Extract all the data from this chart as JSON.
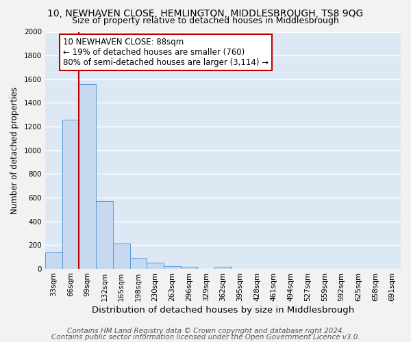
{
  "title": "10, NEWHAVEN CLOSE, HEMLINGTON, MIDDLESBROUGH, TS8 9QG",
  "subtitle": "Size of property relative to detached houses in Middlesbrough",
  "xlabel": "Distribution of detached houses by size in Middlesbrough",
  "ylabel": "Number of detached properties",
  "categories": [
    "33sqm",
    "66sqm",
    "99sqm",
    "132sqm",
    "165sqm",
    "198sqm",
    "230sqm",
    "263sqm",
    "296sqm",
    "329sqm",
    "362sqm",
    "395sqm",
    "428sqm",
    "461sqm",
    "494sqm",
    "527sqm",
    "559sqm",
    "592sqm",
    "625sqm",
    "658sqm",
    "691sqm"
  ],
  "values": [
    140,
    1260,
    1560,
    570,
    215,
    95,
    50,
    22,
    15,
    0,
    18,
    0,
    0,
    0,
    0,
    0,
    0,
    0,
    0,
    0,
    0
  ],
  "bar_color": "#c6d9f0",
  "bar_edge_color": "#5b9bd5",
  "vline_pos": 1.5,
  "vline_color": "#c00000",
  "annotation_text": "10 NEWHAVEN CLOSE: 88sqm\n← 19% of detached houses are smaller (760)\n80% of semi-detached houses are larger (3,114) →",
  "annotation_box_facecolor": "#ffffff",
  "annotation_box_edgecolor": "#c00000",
  "ylim": [
    0,
    2000
  ],
  "yticks": [
    0,
    200,
    400,
    600,
    800,
    1000,
    1200,
    1400,
    1600,
    1800,
    2000
  ],
  "footnote1": "Contains HM Land Registry data © Crown copyright and database right 2024.",
  "footnote2": "Contains public sector information licensed under the Open Government Licence v3.0.",
  "bg_color": "#dce9f5",
  "fig_bg_color": "#f2f2f2",
  "grid_color": "#ffffff",
  "title_fontsize": 10,
  "subtitle_fontsize": 9,
  "xlabel_fontsize": 9.5,
  "ylabel_fontsize": 8.5,
  "tick_fontsize": 7.5,
  "annotation_fontsize": 8.5,
  "footnote_fontsize": 7.5
}
